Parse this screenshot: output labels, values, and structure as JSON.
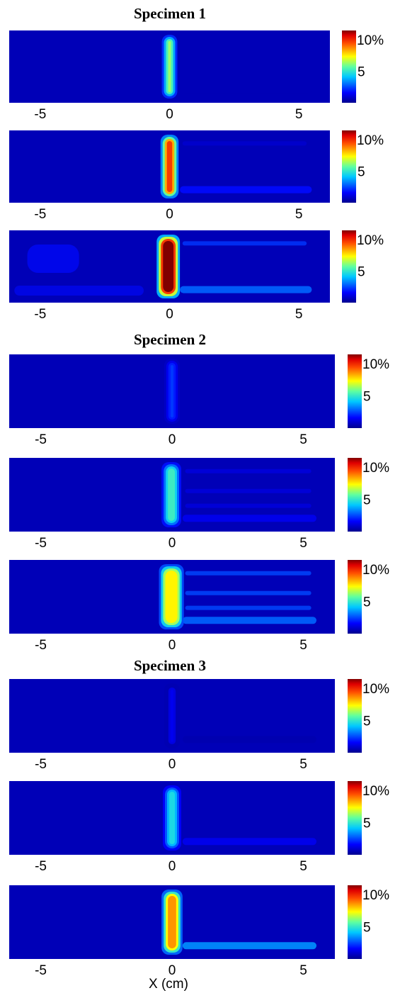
{
  "figure": {
    "xlabel": "X (cm)",
    "colorbar": {
      "labels": [
        "10%",
        "5"
      ],
      "colors": [
        "#00008f",
        "#0040ff",
        "#00c0ff",
        "#60ff9f",
        "#ffff00",
        "#ff8000",
        "#ff0000",
        "#800000"
      ]
    }
  },
  "chart_data": [
    {
      "type": "heatmap",
      "specimen_title": "Specimen 1",
      "x_ticks": [
        "-5",
        "0",
        "5"
      ],
      "x_tick_values": [
        -5,
        0,
        5
      ],
      "xlim": [
        -6.2,
        6.2
      ],
      "color_range": [
        0,
        10
      ],
      "colorbar_labels": [
        "10%",
        "5"
      ],
      "panels": [
        {
          "band_peak": 5.5,
          "band_x": [
            -0.3,
            0.3
          ],
          "bottom_streak": 0.5,
          "upper_streak": 0.2,
          "left_noise": 0.2
        },
        {
          "band_peak": 8.5,
          "band_x": [
            -0.35,
            0.35
          ],
          "bottom_streak": 1.5,
          "upper_streak": 0.8,
          "left_noise": 0.2
        },
        {
          "band_peak": 10,
          "band_x": [
            -0.5,
            0.4
          ],
          "bottom_streak": 2.5,
          "upper_streak": 2.0,
          "left_noise": 1.5
        }
      ]
    },
    {
      "type": "heatmap",
      "specimen_title": "Specimen 2",
      "x_ticks": [
        "-5",
        "0",
        "5"
      ],
      "x_tick_values": [
        -5,
        0,
        5
      ],
      "xlim": [
        -6.2,
        6.2
      ],
      "color_range": [
        0,
        10
      ],
      "colorbar_labels": [
        "10%",
        "5"
      ],
      "panels": [
        {
          "band_peak": 2.0,
          "band_x": [
            -0.3,
            0.3
          ],
          "bottom_streak": 0.2,
          "upper_streak": 0.1,
          "left_noise": 0.1
        },
        {
          "band_peak": 4.5,
          "band_x": [
            -0.4,
            0.35
          ],
          "bottom_streak": 1.2,
          "upper_streak": 1.0,
          "left_noise": 0.1
        },
        {
          "band_peak": 6.5,
          "band_x": [
            -0.5,
            0.45
          ],
          "bottom_streak": 2.5,
          "upper_streak": 2.2,
          "left_noise": 0.1
        }
      ]
    },
    {
      "type": "heatmap",
      "specimen_title": "Specimen 3",
      "x_ticks": [
        "-5",
        "0",
        "5"
      ],
      "x_tick_values": [
        -5,
        0,
        5
      ],
      "xlim": [
        -6.2,
        6.2
      ],
      "color_range": [
        0,
        10
      ],
      "colorbar_labels": [
        "10%",
        "5"
      ],
      "panels": [
        {
          "band_peak": 1.2,
          "band_x": [
            -0.3,
            0.3
          ],
          "bottom_streak": 0.4,
          "upper_streak": 0.1,
          "left_noise": 0.1
        },
        {
          "band_peak": 4.0,
          "band_x": [
            -0.35,
            0.35
          ],
          "bottom_streak": 1.2,
          "upper_streak": 0.3,
          "left_noise": 0.1
        },
        {
          "band_peak": 7.5,
          "band_x": [
            -0.4,
            0.4
          ],
          "bottom_streak": 3.0,
          "upper_streak": 0.3,
          "left_noise": 0.1
        }
      ]
    }
  ]
}
